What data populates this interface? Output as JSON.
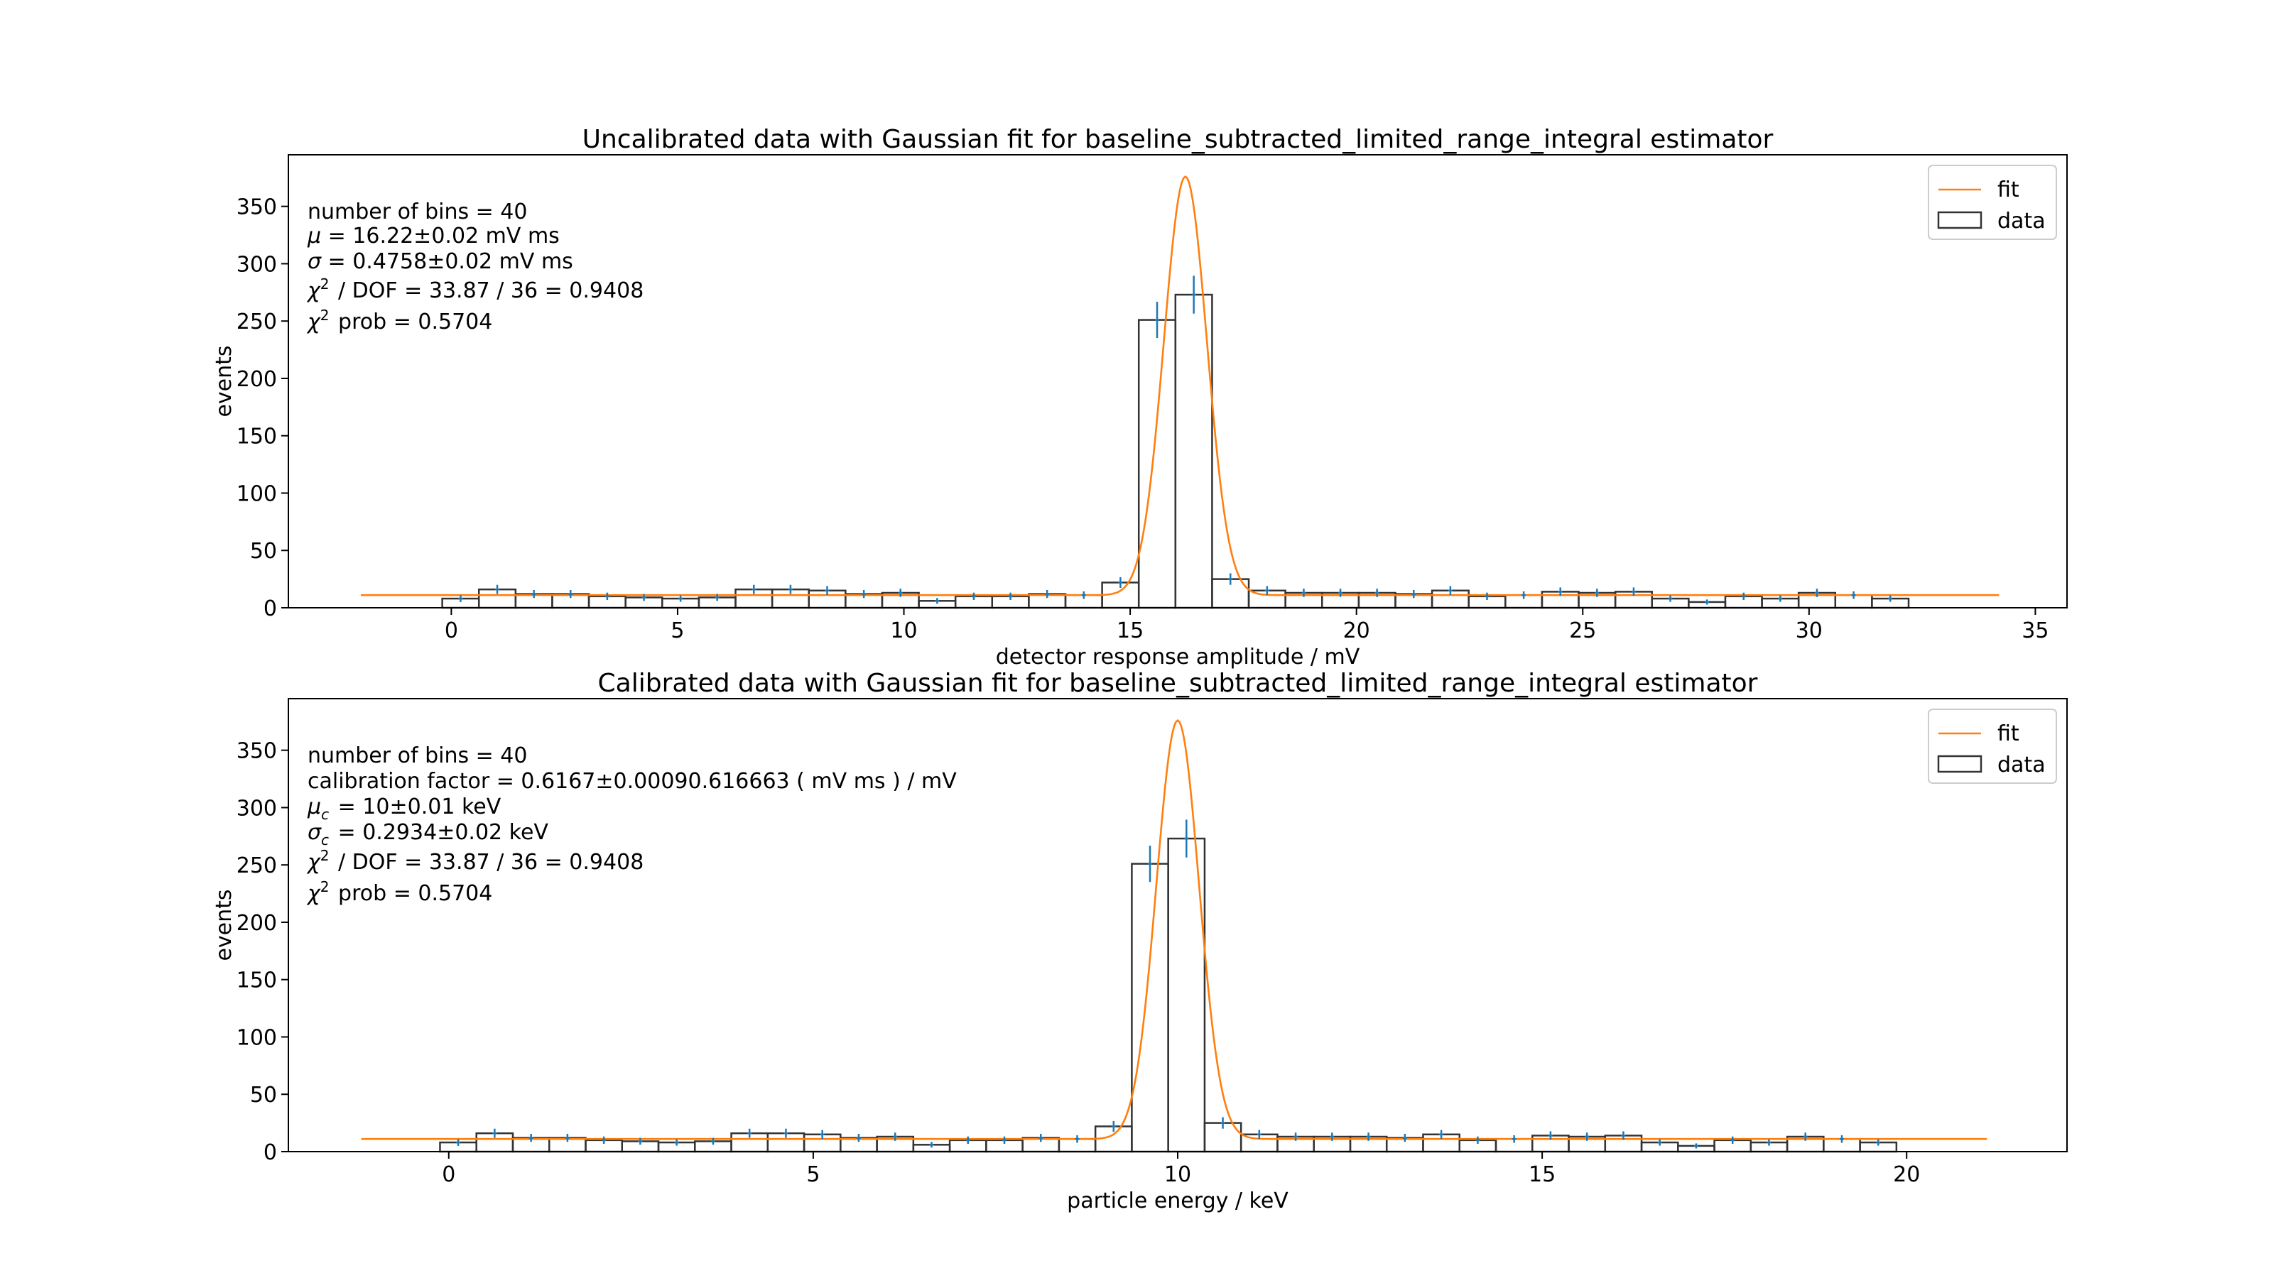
{
  "colors": {
    "fit": "#ff7f0e",
    "data": "#333333",
    "errorbar": "#1f77b4",
    "axes": "#000000"
  },
  "chart_data": [
    {
      "type": "bar",
      "title": "Uncalibrated data with Gaussian fit for baseline_subtracted_limited_range_integral estimator",
      "xlabel": "detector response amplitude / mV",
      "ylabel": "events",
      "xlim": [
        -3.6,
        35.7
      ],
      "ylim": [
        0,
        395
      ],
      "xticks": [
        0,
        5,
        10,
        15,
        20,
        25,
        30,
        35
      ],
      "yticks": [
        0,
        50,
        100,
        150,
        200,
        250,
        300,
        350
      ],
      "grid": false,
      "legend_position": "top-right",
      "legend": {
        "fit": "fit",
        "data": "data"
      },
      "info_lines": [
        "number of bins = 40",
        "μ = 16.22±0.02 mV ms",
        "σ = 0.4758±0.02 mV ms",
        "χ² / DOF = 33.87 / 36 = 0.9408",
        "χ² prob = 0.5704"
      ],
      "bin_edges_range": [
        -0.2,
        32.2
      ],
      "bin_counts": [
        8,
        16,
        12,
        12,
        10,
        9,
        8,
        9,
        16,
        16,
        15,
        12,
        13,
        6,
        10,
        10,
        12,
        11,
        22,
        251,
        273,
        25,
        15,
        13,
        13,
        13,
        12,
        15,
        10,
        11,
        14,
        13,
        14,
        8,
        5,
        10,
        8,
        13,
        11,
        8
      ],
      "error_bars": [
        3,
        4,
        3.5,
        3.5,
        3.2,
        3,
        2.8,
        3,
        4,
        4,
        3.9,
        3.5,
        3.6,
        2.5,
        3.2,
        3.2,
        3.5,
        3.3,
        4.7,
        15.8,
        16.5,
        5,
        3.9,
        3.6,
        3.6,
        3.6,
        3.5,
        3.9,
        3.2,
        3.3,
        3.7,
        3.6,
        3.7,
        2.8,
        2.2,
        3.2,
        2.8,
        3.6,
        3.3,
        2.8
      ],
      "fit": {
        "mu": 16.22,
        "sigma": 0.4758,
        "amplitude": 365,
        "baseline": 11,
        "x_range": [
          -2.0,
          34.2
        ]
      }
    },
    {
      "type": "bar",
      "title": "Calibrated data with Gaussian fit for baseline_subtracted_limited_range_integral estimator",
      "xlabel": "particle energy / keV",
      "ylabel": "events",
      "xlim": [
        -2.2,
        22.2
      ],
      "ylim": [
        0,
        395
      ],
      "xticks": [
        0,
        5,
        10,
        15,
        20
      ],
      "yticks": [
        0,
        50,
        100,
        150,
        200,
        250,
        300,
        350
      ],
      "grid": false,
      "legend_position": "top-right",
      "legend": {
        "fit": "fit",
        "data": "data"
      },
      "info_lines": [
        "number of bins = 40",
        "calibration factor = 0.6167±0.00090.616663 ( mV ms ) / mV",
        "μ_c = 10±0.01 keV",
        "σ_c = 0.2934±0.02 keV",
        "χ² / DOF = 33.87 / 36 = 0.9408",
        "χ² prob = 0.5704"
      ],
      "bin_edges_range": [
        -0.12,
        19.86
      ],
      "bin_counts": [
        8,
        16,
        12,
        12,
        10,
        9,
        8,
        9,
        16,
        16,
        15,
        12,
        13,
        6,
        10,
        10,
        12,
        11,
        22,
        251,
        273,
        25,
        15,
        13,
        13,
        13,
        12,
        15,
        10,
        11,
        14,
        13,
        14,
        8,
        5,
        10,
        8,
        13,
        11,
        8
      ],
      "error_bars": [
        3,
        4,
        3.5,
        3.5,
        3.2,
        3,
        2.8,
        3,
        4,
        4,
        3.9,
        3.5,
        3.6,
        2.5,
        3.2,
        3.2,
        3.5,
        3.3,
        4.7,
        15.8,
        16.5,
        5,
        3.9,
        3.6,
        3.6,
        3.6,
        3.5,
        3.9,
        3.2,
        3.3,
        3.7,
        3.6,
        3.7,
        2.8,
        2.2,
        3.2,
        2.8,
        3.6,
        3.3,
        2.8
      ],
      "fit": {
        "mu": 10.0,
        "sigma": 0.2934,
        "amplitude": 365,
        "baseline": 11,
        "x_range": [
          -1.2,
          21.1
        ]
      }
    }
  ]
}
